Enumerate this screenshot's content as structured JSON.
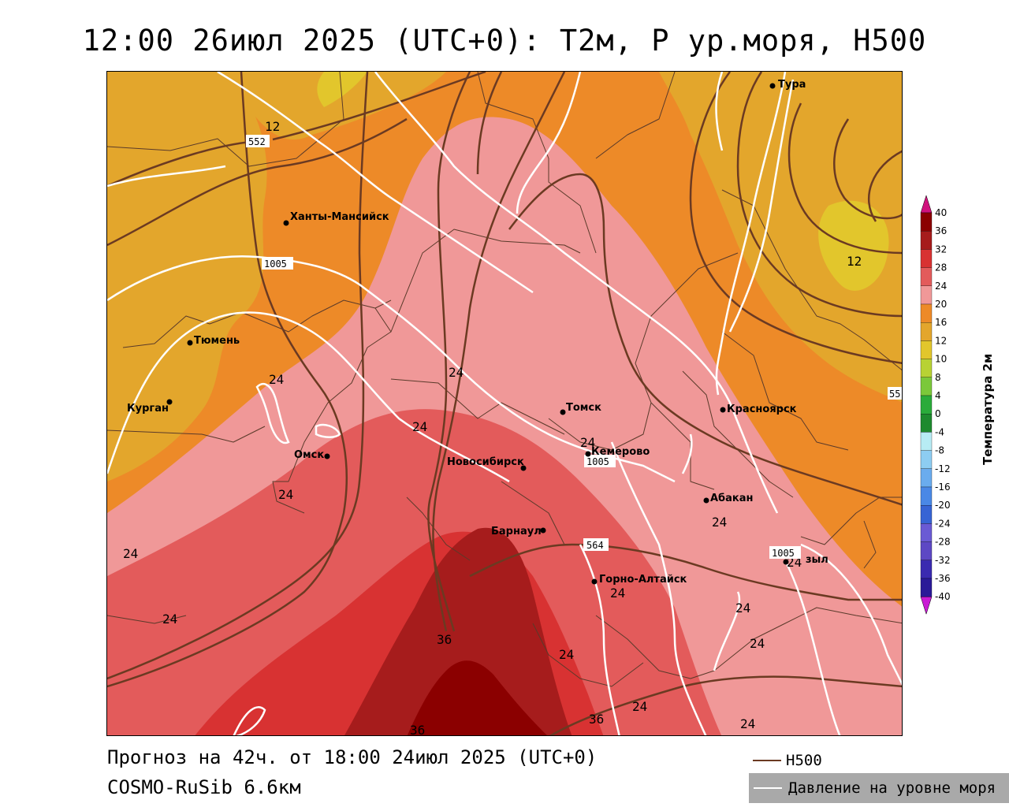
{
  "title": "12:00 26июл 2025 (UTC+0): T2м, P ур.моря, H500",
  "forecast_line": "Прогноз на 42ч. от 18:00 24июл 2025 (UTC+0)",
  "model_line": "COSMO-RuSib 6.6км",
  "legend": {
    "title": "Температура 2м",
    "ticks": [
      "40",
      "36",
      "32",
      "28",
      "24",
      "20",
      "16",
      "12",
      "10",
      "8",
      "4",
      "0",
      "-4",
      "-8",
      "-12",
      "-16",
      "-20",
      "-24",
      "-28",
      "-32",
      "-36",
      "-40"
    ],
    "colors": [
      "#d0127e",
      "#8b0000",
      "#a61c1c",
      "#d83232",
      "#e35b5b",
      "#f09898",
      "#ed8a28",
      "#e3a62c",
      "#e2c62c",
      "#b8d234",
      "#7bc83a",
      "#2aab3a",
      "#1e8a2e",
      "#b7ecf4",
      "#8dcdf2",
      "#6aacee",
      "#4a88e6",
      "#3764d4",
      "#6a5ad4",
      "#5d48c4",
      "#3a2ab0",
      "#2a1a98",
      "#c91bd4"
    ]
  },
  "map_keys": {
    "h500": "H500",
    "pressure": "Давление на уровне моря",
    "h500_color": "#6b3a22",
    "pressure_color": "#ffffff"
  },
  "cities": [
    {
      "name": "Тура"
    },
    {
      "name": "Ханты-Мансийск"
    },
    {
      "name": "Тюмень"
    },
    {
      "name": "Курган"
    },
    {
      "name": "Омск"
    },
    {
      "name": "Новосибирск"
    },
    {
      "name": "Томск"
    },
    {
      "name": "Кемерово"
    },
    {
      "name": "Красноярск"
    },
    {
      "name": "Абакан"
    },
    {
      "name": "Барнаул"
    },
    {
      "name": "Горно-Алтайск"
    },
    {
      "name": "зыл"
    }
  ],
  "isoline_labels": {
    "t12": "12",
    "t24": "24",
    "t36": "36",
    "p1005": "1005",
    "h552": "552",
    "h564": "564",
    "h55": "55"
  }
}
